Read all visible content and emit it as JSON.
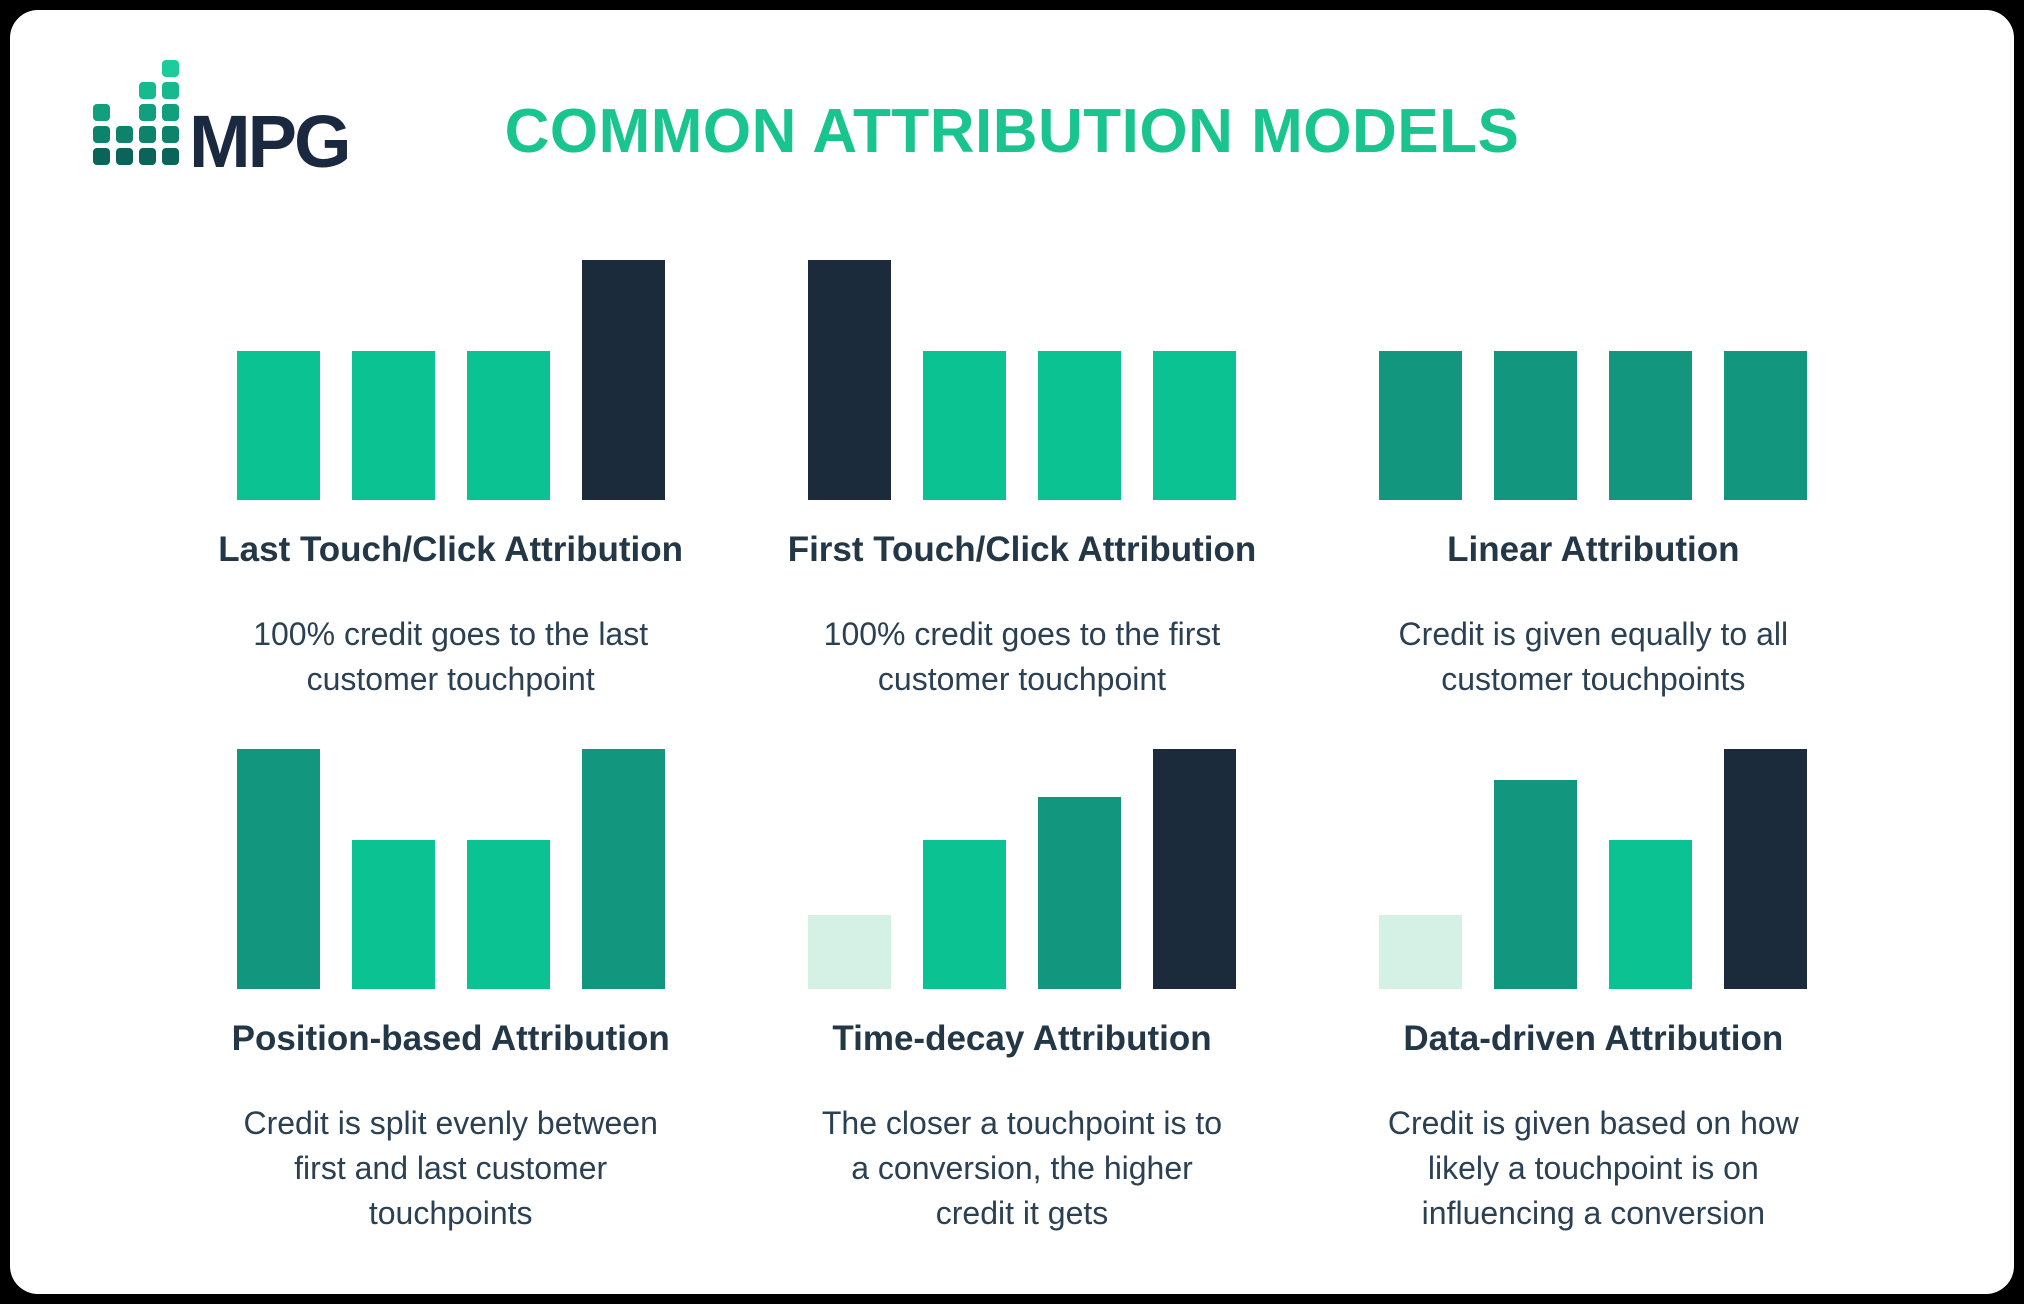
{
  "header": {
    "title": "COMMON ATTRIBUTION MODELS"
  },
  "logo": {
    "text": "MPG",
    "icon_columns": [
      3,
      2,
      4,
      5
    ],
    "icon_row_colors": [
      "#1ECC9B",
      "#18B98E",
      "#129F7E",
      "#0D836C",
      "#0A6459"
    ]
  },
  "colors": {
    "green": "#0AC292",
    "teal": "#12977E",
    "navy": "#1C2B3B",
    "mint": "#D5F1E5",
    "title_green": "#1AC48E",
    "heading_text": "#233747",
    "body_text": "#2B4052",
    "card_bg": "#FFFFFF",
    "frame_bg": "#000000"
  },
  "panels": [
    {
      "key": "last-touch",
      "title": "Last Touch/Click Attribution",
      "description": "100% credit goes to the last\ncustomer touchpoint",
      "chart": {
        "type": "bar",
        "unit": "relative credit (% of max bar)",
        "bars": [
          {
            "color": "green",
            "value": 62
          },
          {
            "color": "green",
            "value": 62
          },
          {
            "color": "green",
            "value": 62
          },
          {
            "color": "navy",
            "value": 100
          }
        ]
      }
    },
    {
      "key": "first-touch",
      "title": "First Touch/Click Attribution",
      "description": "100% credit goes to the first\ncustomer touchpoint",
      "chart": {
        "type": "bar",
        "unit": "relative credit (% of max bar)",
        "bars": [
          {
            "color": "navy",
            "value": 100
          },
          {
            "color": "green",
            "value": 62
          },
          {
            "color": "green",
            "value": 62
          },
          {
            "color": "green",
            "value": 62
          }
        ]
      }
    },
    {
      "key": "linear",
      "title": "Linear Attribution",
      "description": "Credit is given equally to all\ncustomer touchpoints",
      "chart": {
        "type": "bar",
        "unit": "relative credit (% of max bar)",
        "bars": [
          {
            "color": "teal",
            "value": 62
          },
          {
            "color": "teal",
            "value": 62
          },
          {
            "color": "teal",
            "value": 62
          },
          {
            "color": "teal",
            "value": 62
          }
        ]
      }
    },
    {
      "key": "position-based",
      "title": "Position-based Attribution",
      "description": "Credit is split evenly between\nfirst and last customer\ntouchpoints",
      "chart": {
        "type": "bar",
        "unit": "relative credit (% of max bar)",
        "bars": [
          {
            "color": "teal",
            "value": 100
          },
          {
            "color": "green",
            "value": 62
          },
          {
            "color": "green",
            "value": 62
          },
          {
            "color": "teal",
            "value": 100
          }
        ]
      }
    },
    {
      "key": "time-decay",
      "title": "Time-decay Attribution",
      "description": "The closer a touchpoint is to\na conversion, the higher\ncredit it gets",
      "chart": {
        "type": "bar",
        "unit": "relative credit (% of max bar)",
        "bars": [
          {
            "color": "mint",
            "value": 31
          },
          {
            "color": "green",
            "value": 62
          },
          {
            "color": "teal",
            "value": 80
          },
          {
            "color": "navy",
            "value": 100
          }
        ]
      }
    },
    {
      "key": "data-driven",
      "title": "Data-driven Attribution",
      "description": "Credit is given based on how\nlikely a touchpoint is on\ninfluencing a conversion",
      "chart": {
        "type": "bar",
        "unit": "relative credit (% of max bar)",
        "bars": [
          {
            "color": "mint",
            "value": 31
          },
          {
            "color": "teal",
            "value": 87
          },
          {
            "color": "green",
            "value": 62
          },
          {
            "color": "navy",
            "value": 100
          }
        ]
      }
    }
  ]
}
